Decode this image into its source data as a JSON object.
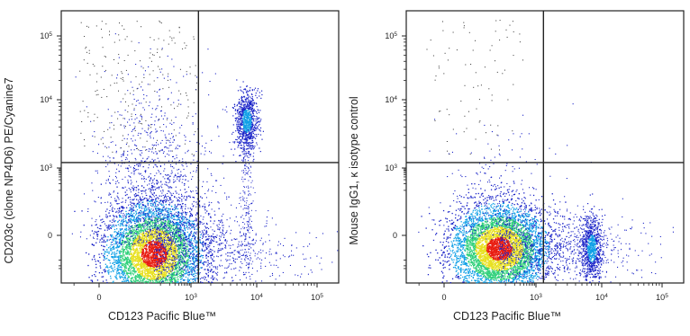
{
  "chart_data": [
    {
      "type": "scatter",
      "style": "density dot plot",
      "xlabel": "CD123 Pacific Blue™",
      "ylabel": "CD203c (clone NP4D6) PE/Cyanine7",
      "x_ticks": [
        "0",
        "10",
        "10",
        "10"
      ],
      "x_tick_exponents": [
        "",
        "3",
        "4",
        "5"
      ],
      "y_ticks": [
        "0",
        "10",
        "10",
        "10"
      ],
      "y_tick_exponents": [
        "",
        "3",
        "4",
        "5"
      ],
      "x_gate": 1300,
      "y_gate": 1200,
      "populations": [
        {
          "name": "",
          "x_center": 60,
          "y_center": -30,
          "density": "high"
        },
        {
          "name": "",
          "x_center": 7000,
          "y_center": 5000,
          "density": "medium"
        }
      ],
      "grid": false
    },
    {
      "type": "scatter",
      "style": "density dot plot",
      "xlabel": "CD123 Pacific Blue™",
      "ylabel": "Mouse IgG1, κ isotype control",
      "x_ticks": [
        "0",
        "10",
        "10",
        "10"
      ],
      "x_tick_exponents": [
        "",
        "3",
        "4",
        "5"
      ],
      "y_ticks": [
        "0",
        "10",
        "10",
        "10"
      ],
      "y_tick_exponents": [
        "",
        "3",
        "4",
        "5"
      ],
      "x_gate": 1300,
      "y_gate": 1200,
      "populations": [
        {
          "name": "",
          "x_center": 60,
          "y_center": -10,
          "density": "high"
        },
        {
          "name": "",
          "x_center": 7000,
          "y_center": -10,
          "density": "medium"
        }
      ],
      "grid": false
    }
  ],
  "colors": {
    "low": "#1a23c8",
    "mid_low": "#0fa0e6",
    "mid": "#2fd07a",
    "mid_high": "#e8e020",
    "high": "#e81c10"
  }
}
